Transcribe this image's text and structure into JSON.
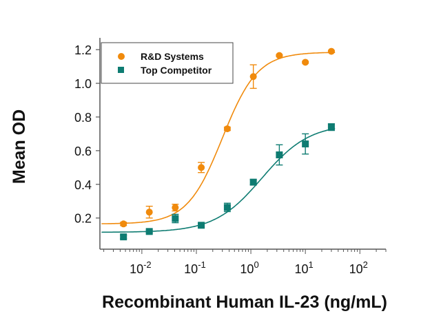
{
  "chart_data": {
    "type": "scatter",
    "title": "",
    "xlabel": "Recombinant Human IL-23 (ng/mL)",
    "ylabel": "Mean OD",
    "x_scale": "log",
    "xlim": [
      0.0017,
      300
    ],
    "ylim": [
      0.015,
      1.27
    ],
    "x_ticks": [
      0.01,
      0.1,
      1,
      10,
      100
    ],
    "x_tick_labels": [
      {
        "base": "10",
        "exp": "-2"
      },
      {
        "base": "10",
        "exp": "-1"
      },
      {
        "base": "10",
        "exp": "0"
      },
      {
        "base": "10",
        "exp": "1"
      },
      {
        "base": "10",
        "exp": "2"
      }
    ],
    "y_ticks": [
      0.2,
      0.4,
      0.6,
      0.8,
      1.0,
      1.2
    ],
    "y_tick_labels": [
      "0.2",
      "0.4",
      "0.6",
      "0.8",
      "1.0",
      "1.2"
    ],
    "grid": false,
    "legend_position": "top-left",
    "x": [
      0.0046,
      0.0137,
      0.041,
      0.123,
      0.37,
      1.11,
      3.33,
      10,
      30
    ],
    "series": [
      {
        "name": "R&D Systems",
        "marker": "circle",
        "color": "#F08A0C",
        "values": [
          0.165,
          0.235,
          0.262,
          0.5,
          0.73,
          1.04,
          1.165,
          1.125,
          1.19
        ],
        "errors": [
          0.01,
          0.035,
          0.02,
          0.03,
          0.01,
          0.07,
          0.005,
          0.005,
          0.005
        ],
        "fit": {
          "bottom": 0.165,
          "top": 1.185,
          "ec50": 0.3,
          "hill": 1.35
        }
      },
      {
        "name": "Top Competitor",
        "marker": "square",
        "color": "#0E7C72",
        "values": [
          0.088,
          0.12,
          0.197,
          0.157,
          0.263,
          0.413,
          0.575,
          0.64,
          0.74
        ],
        "errors": [
          0.01,
          0.008,
          0.025,
          0.01,
          0.025,
          0.015,
          0.06,
          0.06,
          0.02
        ],
        "fit": {
          "bottom": 0.115,
          "top": 0.76,
          "ec50": 1.6,
          "hill": 1.0
        }
      }
    ]
  }
}
